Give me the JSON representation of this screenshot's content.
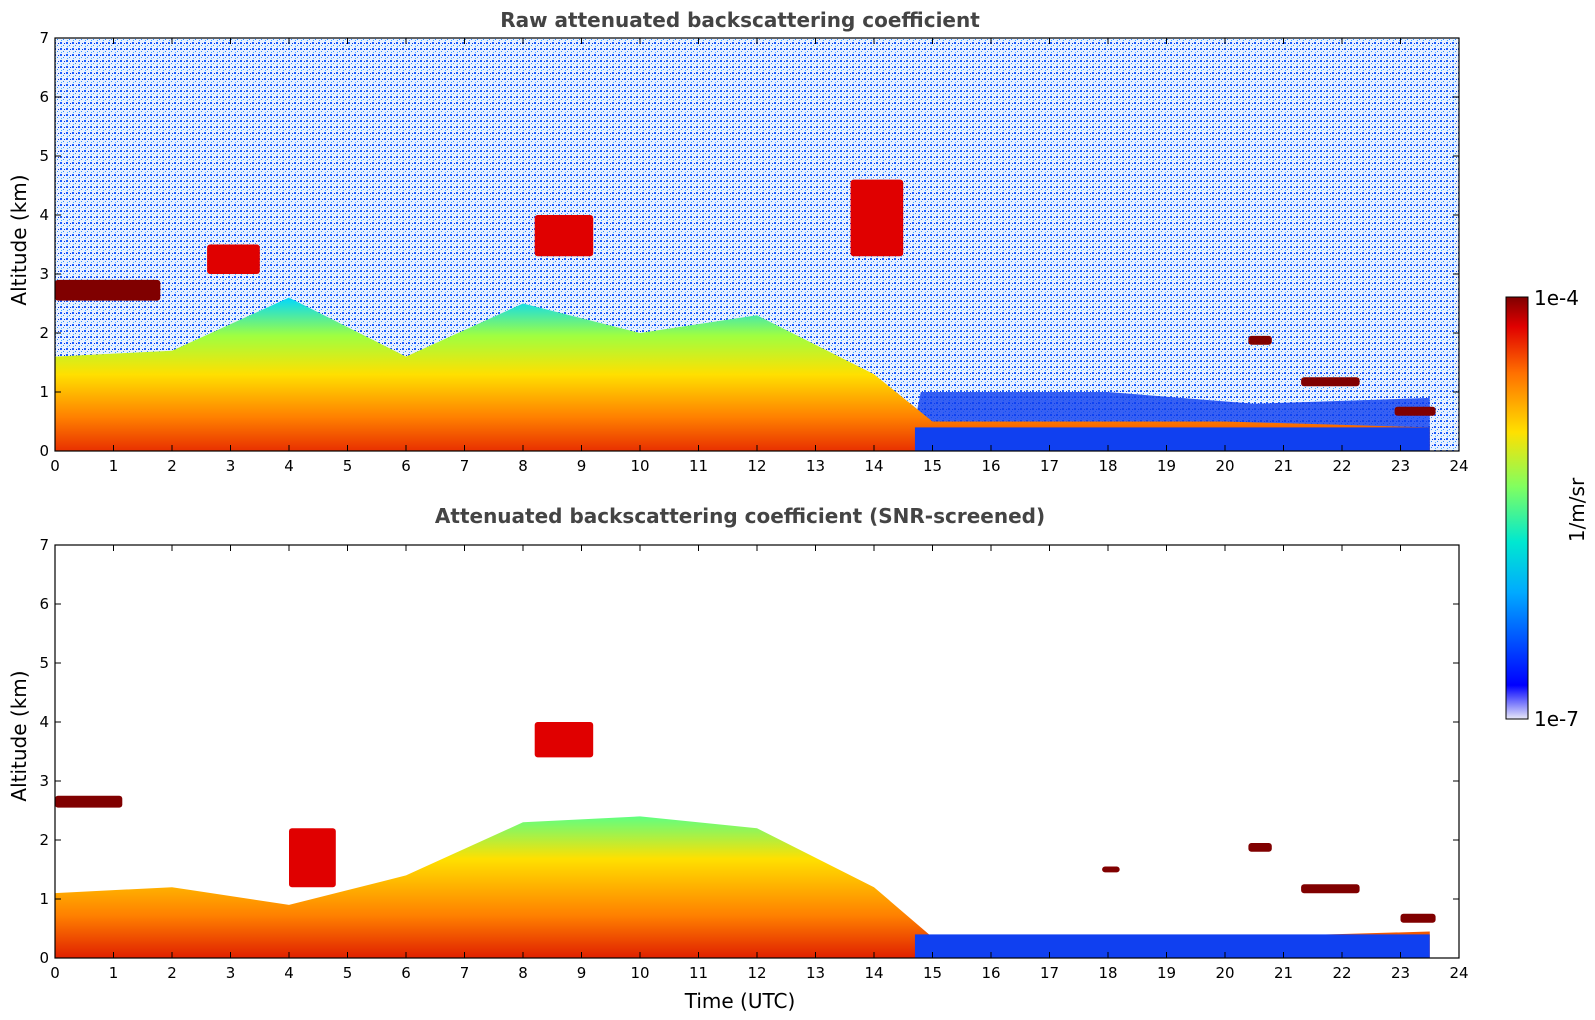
{
  "chart_data": [
    {
      "type": "heatmap",
      "title": "Raw attenuated backscattering coefficient",
      "xlabel": "",
      "ylabel": "Altitude (km)",
      "xlim": [
        0,
        24
      ],
      "ylim": [
        0,
        7
      ],
      "xticks": [
        "0",
        "1",
        "2",
        "3",
        "4",
        "5",
        "6",
        "7",
        "8",
        "9",
        "10",
        "11",
        "12",
        "13",
        "14",
        "15",
        "16",
        "17",
        "18",
        "19",
        "20",
        "21",
        "22",
        "23",
        "24"
      ],
      "yticks": [
        "0",
        "1",
        "2",
        "3",
        "4",
        "5",
        "6",
        "7"
      ],
      "grid": false,
      "layers": [
        {
          "x": [
            0,
            1.8
          ],
          "y": [
            2.55,
            2.9
          ],
          "value": 9e-05
        },
        {
          "x": [
            2.6,
            3.5
          ],
          "y": [
            3.0,
            3.5
          ],
          "value": 6e-05
        },
        {
          "x": [
            8.2,
            9.2
          ],
          "y": [
            3.3,
            4.0
          ],
          "value": 4e-05
        },
        {
          "x": [
            13.6,
            14.5
          ],
          "y": [
            3.3,
            4.6
          ],
          "value": 3e-05
        },
        {
          "x": [
            20.4,
            20.8
          ],
          "y": [
            1.8,
            1.95
          ],
          "value": 9e-05
        },
        {
          "x": [
            21.3,
            22.3
          ],
          "y": [
            1.1,
            1.25
          ],
          "value": 8e-05
        },
        {
          "x": [
            22.9,
            23.6
          ],
          "y": [
            0.6,
            0.75
          ],
          "value": 8e-05
        }
      ],
      "boundary_layer_top_km": [
        {
          "x": 0,
          "y": 1.6
        },
        {
          "x": 2,
          "y": 1.7
        },
        {
          "x": 4,
          "y": 2.6
        },
        {
          "x": 6,
          "y": 1.6
        },
        {
          "x": 8,
          "y": 2.5
        },
        {
          "x": 10,
          "y": 2.0
        },
        {
          "x": 12,
          "y": 2.3
        },
        {
          "x": 14,
          "y": 1.3
        },
        {
          "x": 15,
          "y": 0.5
        },
        {
          "x": 20,
          "y": 0.5
        },
        {
          "x": 23.5,
          "y": 0.4
        }
      ]
    },
    {
      "type": "heatmap",
      "title": "Attenuated backscattering coefficient (SNR-screened)",
      "xlabel": "Time (UTC)",
      "ylabel": "Altitude (km)",
      "xlim": [
        0,
        24
      ],
      "ylim": [
        0,
        7
      ],
      "xticks": [
        "0",
        "1",
        "2",
        "3",
        "4",
        "5",
        "6",
        "7",
        "8",
        "9",
        "10",
        "11",
        "12",
        "13",
        "14",
        "15",
        "16",
        "17",
        "18",
        "19",
        "20",
        "21",
        "22",
        "23",
        "24"
      ],
      "yticks": [
        "0",
        "1",
        "2",
        "3",
        "4",
        "5",
        "6",
        "7"
      ],
      "grid": false,
      "layers": [
        {
          "x": [
            0,
            1.15
          ],
          "y": [
            2.55,
            2.75
          ],
          "value": 0.0001
        },
        {
          "x": [
            4.0,
            4.8
          ],
          "y": [
            1.2,
            2.2
          ],
          "value": 5e-05
        },
        {
          "x": [
            8.2,
            9.2
          ],
          "y": [
            3.4,
            4.0
          ],
          "value": 4e-05
        },
        {
          "x": [
            17.9,
            18.2
          ],
          "y": [
            1.45,
            1.55
          ],
          "value": 0.0001
        },
        {
          "x": [
            20.4,
            20.8
          ],
          "y": [
            1.8,
            1.95
          ],
          "value": 0.0001
        },
        {
          "x": [
            21.3,
            22.3
          ],
          "y": [
            1.1,
            1.25
          ],
          "value": 0.0001
        },
        {
          "x": [
            23.0,
            23.6
          ],
          "y": [
            0.6,
            0.75
          ],
          "value": 0.0001
        }
      ],
      "boundary_layer_top_km": [
        {
          "x": 0,
          "y": 1.1
        },
        {
          "x": 2,
          "y": 1.2
        },
        {
          "x": 4,
          "y": 0.9
        },
        {
          "x": 6,
          "y": 1.4
        },
        {
          "x": 8,
          "y": 2.3
        },
        {
          "x": 10,
          "y": 2.4
        },
        {
          "x": 12,
          "y": 2.2
        },
        {
          "x": 14,
          "y": 1.2
        },
        {
          "x": 15,
          "y": 0.35
        },
        {
          "x": 20,
          "y": 0.35
        },
        {
          "x": 23.5,
          "y": 0.45
        }
      ]
    }
  ],
  "colorbar": {
    "label": "1/m/sr",
    "max_label": "1e-4",
    "min_label": "1e-7",
    "range": [
      1e-07,
      0.0001
    ],
    "scale": "log",
    "colormap": "jet",
    "colors": [
      "#e8e8f8",
      "#0000ff",
      "#00aaff",
      "#00e8d0",
      "#80ff60",
      "#ffe000",
      "#ff7000",
      "#e00000",
      "#800000"
    ]
  }
}
